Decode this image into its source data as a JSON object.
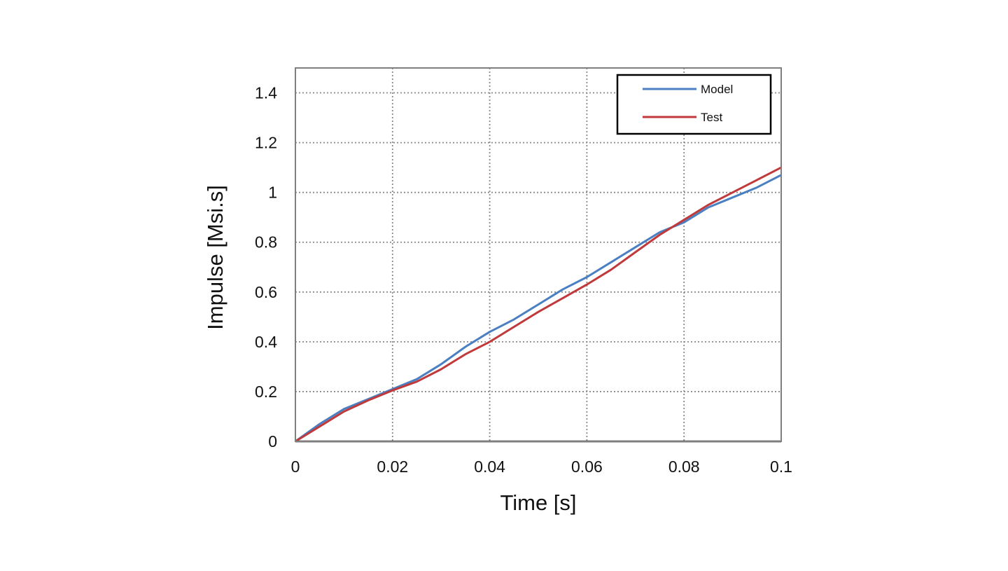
{
  "chart_data": {
    "type": "line",
    "title": "",
    "xlabel": "Time [s]",
    "ylabel": "Impulse [Msi.s]",
    "xlim": [
      0,
      0.1
    ],
    "ylim": [
      0,
      1.5
    ],
    "x_ticks": [
      0,
      0.02,
      0.04,
      0.06,
      0.08,
      0.1
    ],
    "x_tick_labels": [
      "0",
      "0.02",
      "0.04",
      "0.06",
      "0.08",
      "0.1"
    ],
    "y_ticks": [
      0,
      0.2,
      0.4,
      0.6,
      0.8,
      1.0,
      1.2,
      1.4
    ],
    "y_tick_labels": [
      "0",
      "0.2",
      "0.4",
      "0.6",
      "0.8",
      "1",
      "1.2",
      "1.4"
    ],
    "grid": true,
    "grid_style": "dotted",
    "legend_position": "top-right",
    "series": [
      {
        "name": "Model",
        "color": "#4a7fc1",
        "x": [
          0,
          0.005,
          0.01,
          0.015,
          0.02,
          0.025,
          0.03,
          0.035,
          0.04,
          0.045,
          0.05,
          0.055,
          0.06,
          0.065,
          0.07,
          0.075,
          0.08,
          0.085,
          0.09,
          0.095,
          0.1
        ],
        "y": [
          0,
          0.07,
          0.13,
          0.17,
          0.21,
          0.25,
          0.31,
          0.38,
          0.44,
          0.49,
          0.55,
          0.61,
          0.66,
          0.72,
          0.78,
          0.84,
          0.88,
          0.94,
          0.98,
          1.02,
          1.07
        ]
      },
      {
        "name": "Test",
        "color": "#c0393b",
        "x": [
          0,
          0.005,
          0.01,
          0.015,
          0.02,
          0.025,
          0.03,
          0.035,
          0.04,
          0.045,
          0.05,
          0.055,
          0.06,
          0.065,
          0.07,
          0.075,
          0.08,
          0.085,
          0.09,
          0.095,
          0.1
        ],
        "y": [
          0,
          0.06,
          0.12,
          0.165,
          0.205,
          0.24,
          0.29,
          0.35,
          0.4,
          0.46,
          0.52,
          0.575,
          0.63,
          0.69,
          0.76,
          0.83,
          0.89,
          0.95,
          1.0,
          1.05,
          1.1
        ]
      }
    ]
  }
}
